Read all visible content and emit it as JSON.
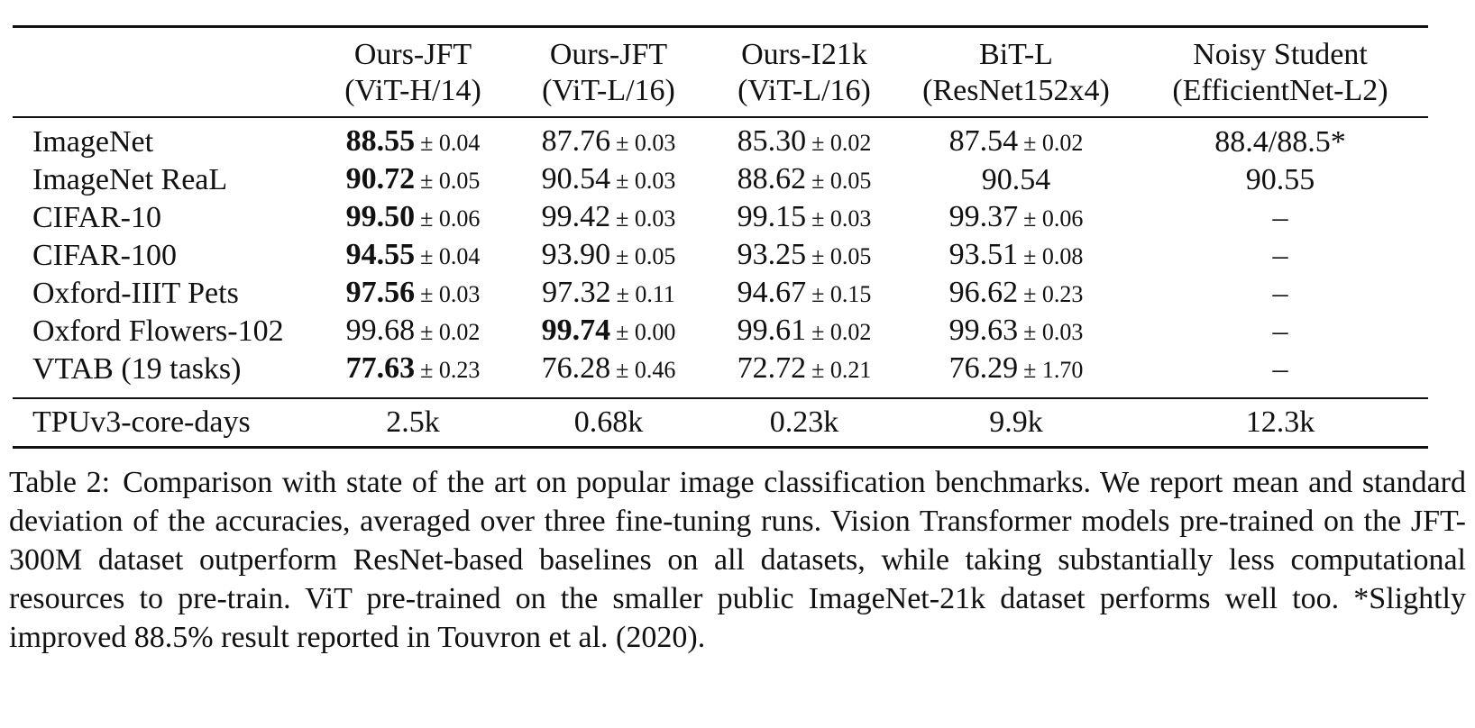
{
  "table": {
    "columns": [
      {
        "line1": "Ours-JFT",
        "line2": "(ViT-H/14)"
      },
      {
        "line1": "Ours-JFT",
        "line2": "(ViT-L/16)"
      },
      {
        "line1": "Ours-I21k",
        "line2": "(ViT-L/16)"
      },
      {
        "line1": "BiT-L",
        "line2": "(ResNet152x4)"
      },
      {
        "line1": "Noisy Student",
        "line2": "(EfficientNet-L2)"
      }
    ],
    "rows": [
      {
        "dataset": "ImageNet",
        "cells": [
          {
            "v": "88.55",
            "pm": "± 0.04",
            "best": true
          },
          {
            "v": "87.76",
            "pm": "± 0.03"
          },
          {
            "v": "85.30",
            "pm": "± 0.02"
          },
          {
            "v": "87.54",
            "pm": "± 0.02"
          },
          {
            "v": "88.4/88.5*",
            "pm": ""
          }
        ]
      },
      {
        "dataset": "ImageNet ReaL",
        "cells": [
          {
            "v": "90.72",
            "pm": "± 0.05",
            "best": true
          },
          {
            "v": "90.54",
            "pm": "± 0.03"
          },
          {
            "v": "88.62",
            "pm": "± 0.05"
          },
          {
            "v": "90.54",
            "pm": ""
          },
          {
            "v": "90.55",
            "pm": ""
          }
        ]
      },
      {
        "dataset": "CIFAR-10",
        "cells": [
          {
            "v": "99.50",
            "pm": "± 0.06",
            "best": true
          },
          {
            "v": "99.42",
            "pm": "± 0.03"
          },
          {
            "v": "99.15",
            "pm": "± 0.03"
          },
          {
            "v": "99.37",
            "pm": "± 0.06"
          },
          {
            "v": "–",
            "pm": ""
          }
        ]
      },
      {
        "dataset": "CIFAR-100",
        "cells": [
          {
            "v": "94.55",
            "pm": "± 0.04",
            "best": true
          },
          {
            "v": "93.90",
            "pm": "± 0.05"
          },
          {
            "v": "93.25",
            "pm": "± 0.05"
          },
          {
            "v": "93.51",
            "pm": "± 0.08"
          },
          {
            "v": "–",
            "pm": ""
          }
        ]
      },
      {
        "dataset": "Oxford-IIIT Pets",
        "cells": [
          {
            "v": "97.56",
            "pm": "± 0.03",
            "best": true
          },
          {
            "v": "97.32",
            "pm": "± 0.11"
          },
          {
            "v": "94.67",
            "pm": "± 0.15"
          },
          {
            "v": "96.62",
            "pm": "± 0.23"
          },
          {
            "v": "–",
            "pm": ""
          }
        ]
      },
      {
        "dataset": "Oxford Flowers-102",
        "cells": [
          {
            "v": "99.68",
            "pm": "± 0.02"
          },
          {
            "v": "99.74",
            "pm": "± 0.00",
            "best": true
          },
          {
            "v": "99.61",
            "pm": "± 0.02"
          },
          {
            "v": "99.63",
            "pm": "± 0.03"
          },
          {
            "v": "–",
            "pm": ""
          }
        ]
      },
      {
        "dataset": "VTAB (19 tasks)",
        "cells": [
          {
            "v": "77.63",
            "pm": "± 0.23",
            "best": true
          },
          {
            "v": "76.28",
            "pm": "± 0.46"
          },
          {
            "v": "72.72",
            "pm": "± 0.21"
          },
          {
            "v": "76.29",
            "pm": "± 1.70"
          },
          {
            "v": "–",
            "pm": ""
          }
        ]
      }
    ],
    "compute_row": {
      "dataset": "TPUv3-core-days",
      "cells": [
        "2.5k",
        "0.68k",
        "0.23k",
        "9.9k",
        "12.3k"
      ]
    }
  },
  "caption": {
    "label": "Table 2:",
    "text": "Comparison with state of the art on popular image classification benchmarks. We report mean and standard deviation of the accuracies, averaged over three fine-tuning runs. Vision Transformer models pre-trained on the JFT-300M dataset outperform ResNet-based baselines on all datasets, while taking substantially less computational resources to pre-train. ViT pre-trained on the smaller public ImageNet-21k dataset performs well too. *Slightly improved 88.5% result reported in Touvron et al. (2020)."
  }
}
